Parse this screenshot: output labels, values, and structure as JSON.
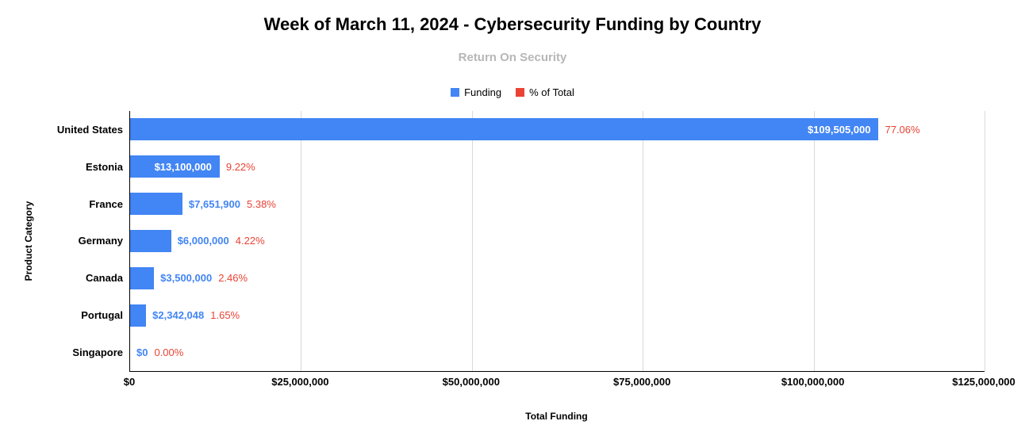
{
  "chart": {
    "title": "Week of March 11, 2024 - Cybersecurity Funding by Country",
    "subtitle": "Return On Security",
    "ylabel": "Product Category",
    "xlabel": "Total Funding"
  },
  "legend": [
    {
      "label": "Funding",
      "color": "#4285f4"
    },
    {
      "label": "% of Total",
      "color": "#ea4335"
    }
  ],
  "chart_data": {
    "type": "bar",
    "orientation": "horizontal",
    "title": "Week of March 11, 2024 - Cybersecurity Funding by Country",
    "subtitle": "Return On Security",
    "xlabel": "Total Funding",
    "ylabel": "Product Category",
    "xlim": [
      0,
      125000000
    ],
    "x_ticks": [
      "$0",
      "$25,000,000",
      "$50,000,000",
      "$75,000,000",
      "$100,000,000",
      "$125,000,000"
    ],
    "x_tick_values": [
      0,
      25000000,
      50000000,
      75000000,
      100000000,
      125000000
    ],
    "grid": true,
    "legend_position": "top",
    "categories": [
      "United States",
      "Estonia",
      "France",
      "Germany",
      "Canada",
      "Portugal",
      "Singapore"
    ],
    "series": [
      {
        "name": "Funding",
        "values": [
          109505000,
          13100000,
          7651900,
          6000000,
          3500000,
          2342048,
          0
        ],
        "labels": [
          "$109,505,000",
          "$13,100,000",
          "$7,651,900",
          "$6,000,000",
          "$3,500,000",
          "$2,342,048",
          "$0"
        ]
      },
      {
        "name": "% of Total",
        "values": [
          77.06,
          9.22,
          5.38,
          4.22,
          2.46,
          1.65,
          0.0
        ],
        "labels": [
          "77.06%",
          "9.22%",
          "5.38%",
          "4.22%",
          "2.46%",
          "1.65%",
          "0.00%"
        ]
      }
    ],
    "colors": {
      "bar": "#4285f4",
      "percent_label": "#ea4335",
      "value_label_inside": "#ffffff",
      "value_label_outside": "#4285f4",
      "gridline": "#d9d9d9",
      "subtitle": "#b7b7b7"
    }
  }
}
